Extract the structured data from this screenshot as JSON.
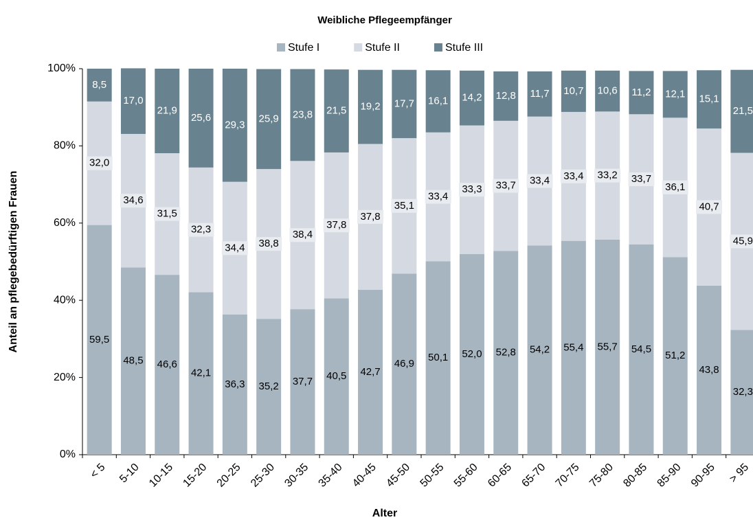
{
  "chart_data": {
    "type": "stacked_bar",
    "title": "Weibliche Pflegeempfänger",
    "xlabel": "Alter",
    "ylabel": "Anteil an pflegebedürftigen Frauen",
    "categories": [
      "< 5",
      "5-10",
      "10-15",
      "15-20",
      "20-25",
      "25-30",
      "30-35",
      "35-40",
      "40-45",
      "45-50",
      "50-55",
      "55-60",
      "60-65",
      "65-70",
      "70-75",
      "75-80",
      "80-85",
      "85-90",
      "90-95",
      "> 95"
    ],
    "series": [
      {
        "name": "Stufe I",
        "color": "#a7b5c1",
        "values": [
          59.5,
          48.5,
          46.6,
          42.1,
          36.3,
          35.2,
          37.7,
          40.5,
          42.7,
          46.9,
          50.1,
          52.0,
          52.8,
          54.2,
          55.4,
          55.7,
          54.5,
          51.2,
          43.8,
          32.3
        ],
        "value_labels": [
          "59,5",
          "48,5",
          "46,6",
          "42,1",
          "36,3",
          "35,2",
          "37,7",
          "40,5",
          "42,7",
          "46,9",
          "50,1",
          "52,0",
          "52,8",
          "54,2",
          "55,4",
          "55,7",
          "54,5",
          "51,2",
          "43,8",
          "32,3"
        ]
      },
      {
        "name": "Stufe II",
        "color": "#d5dae2",
        "values": [
          32.0,
          34.6,
          31.5,
          32.3,
          34.4,
          38.8,
          38.4,
          37.8,
          37.8,
          35.1,
          33.4,
          33.3,
          33.7,
          33.4,
          33.4,
          33.2,
          33.7,
          36.1,
          40.7,
          45.9
        ],
        "value_labels": [
          "32,0",
          "34,6",
          "31,5",
          "32,3",
          "34,4",
          "38,8",
          "38,4",
          "37,8",
          "37,8",
          "35,1",
          "33,4",
          "33,3",
          "33,7",
          "33,4",
          "33,4",
          "33,2",
          "33,7",
          "36,1",
          "40,7",
          "45,9"
        ]
      },
      {
        "name": "Stufe III",
        "color": "#68838f",
        "values": [
          8.5,
          17.0,
          21.9,
          25.6,
          29.3,
          25.9,
          23.8,
          21.5,
          19.2,
          17.7,
          16.1,
          14.2,
          12.8,
          11.7,
          10.7,
          10.6,
          11.2,
          12.1,
          15.1,
          21.5
        ],
        "value_labels": [
          "8,5",
          "17,0",
          "21,9",
          "25,6",
          "29,3",
          "25,9",
          "23,8",
          "21,5",
          "19,2",
          "17,7",
          "16,1",
          "14,2",
          "12,8",
          "11,7",
          "10,7",
          "10,6",
          "11,2",
          "12,1",
          "15,1",
          "21,5"
        ]
      }
    ],
    "ylim": [
      0,
      100
    ],
    "yticks": [
      {
        "value": 0,
        "label": "0%"
      },
      {
        "value": 20,
        "label": "20%"
      },
      {
        "value": 40,
        "label": "40%"
      },
      {
        "value": 60,
        "label": "60%"
      },
      {
        "value": 80,
        "label": "80%"
      },
      {
        "value": 100,
        "label": "100%"
      }
    ],
    "grid": true,
    "legend": "top"
  }
}
